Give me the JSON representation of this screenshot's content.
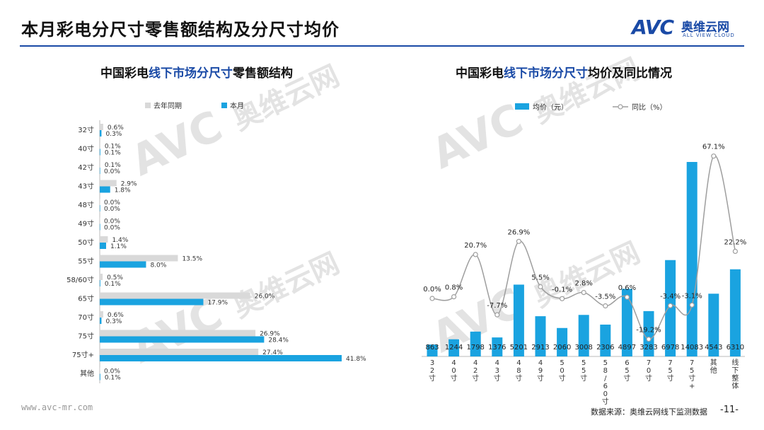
{
  "header": {
    "title": "本月彩电分尺寸零售额结构及分尺寸均价",
    "logo_mark": "AVC",
    "logo_cn": "奥维云网",
    "logo_en": "ALL VIEW CLOUD"
  },
  "watermark": {
    "mark": "AVC",
    "cn": "奥维云网",
    "en": "ALL VIEW CLOUD"
  },
  "footer": {
    "url": "www.avc-mr.com",
    "source": "数据来源：奥维云网线下监测数据",
    "page": "-11-"
  },
  "colors": {
    "accent": "#1a4aa6",
    "bar_current": "#1aa3e0",
    "bar_prev": "#d9d9d9",
    "line": "#9e9e9e"
  },
  "chart_data": [
    {
      "type": "bar",
      "orientation": "horizontal",
      "title_parts": [
        "中国彩电",
        "线下市场分尺寸",
        "零售额结构"
      ],
      "categories": [
        "32寸",
        "40寸",
        "42寸",
        "43寸",
        "48寸",
        "49寸",
        "50寸",
        "55寸",
        "58/60寸",
        "65寸",
        "70寸",
        "75寸",
        "75寸+",
        "其他"
      ],
      "series": [
        {
          "name": "去年同期",
          "values": [
            0.6,
            0.1,
            0.1,
            2.9,
            0.0,
            0.0,
            1.4,
            13.5,
            0.5,
            26.0,
            0.6,
            26.9,
            27.4,
            0.0
          ],
          "color": "#d9d9d9"
        },
        {
          "name": "本月",
          "values": [
            0.3,
            0.1,
            0.0,
            1.8,
            0.0,
            0.0,
            1.1,
            8.0,
            0.1,
            17.9,
            0.3,
            28.4,
            41.8,
            0.1
          ],
          "color": "#1aa3e0"
        }
      ],
      "unit": "%",
      "legend_position": "top"
    },
    {
      "type": "bar+line",
      "title_parts": [
        "中国彩电",
        "线下市场分尺寸",
        "均价及同比情况"
      ],
      "categories": [
        "32寸",
        "40寸",
        "42寸",
        "43寸",
        "48寸",
        "49寸",
        "50寸",
        "55寸",
        "58/60寸",
        "65寸",
        "70寸",
        "75寸",
        "75寸+",
        "其他",
        "线下整体"
      ],
      "bars": {
        "name": "均价（元）",
        "values": [
          863,
          1244,
          1798,
          1376,
          5201,
          2913,
          2060,
          3008,
          2306,
          4897,
          3283,
          6978,
          14083,
          4543,
          6310
        ],
        "color": "#1aa3e0"
      },
      "line": {
        "name": "同比（%）",
        "values": [
          0.0,
          0.8,
          20.7,
          -7.7,
          26.9,
          5.5,
          -0.1,
          2.8,
          -3.5,
          0.6,
          -19.2,
          -3.4,
          -3.1,
          67.1,
          22.2
        ],
        "labels": [
          "0.0%",
          "0.8%",
          "20.7%",
          "-7.7%",
          "26.9%",
          "5.5%",
          "-0.1%",
          "2.8%",
          "-3.5%",
          "0.6%",
          "-19.2%",
          "-3.4%",
          "-3.1%",
          "67.1%",
          "22.2%"
        ],
        "color": "#9e9e9e"
      },
      "legend_position": "top"
    }
  ]
}
